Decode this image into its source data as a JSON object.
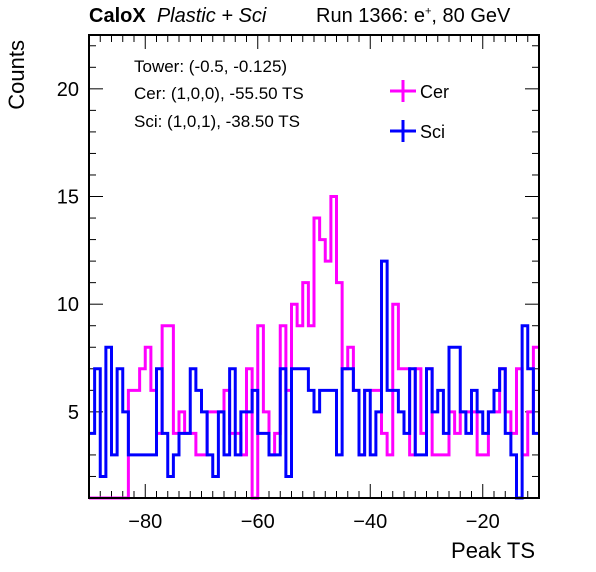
{
  "header": {
    "brand": "CaloX",
    "config": "Plastic + Sci",
    "run": "Run 1366: e",
    "run_sup": "+",
    "run_tail": ", 80 GeV"
  },
  "chart_data": {
    "type": "histogram",
    "xlabel": "Peak TS",
    "ylabel": "Counts",
    "xlim": [
      -90,
      -10
    ],
    "ylim": [
      1,
      22.5
    ],
    "x_ticks": [
      -80,
      -60,
      -40,
      -20
    ],
    "y_ticks": [
      5,
      10,
      15,
      20
    ],
    "bin_width": 1,
    "bin_start": -90,
    "info_lines": [
      "Tower: (-0.5, -0.125)",
      "Cer: (1,0,0), -55.50 TS",
      "Sci: (1,0,1), -38.50 TS"
    ],
    "series": [
      {
        "name": "Cer",
        "color": "#ff00ff",
        "values": [
          1,
          1,
          1,
          1,
          1,
          1,
          1,
          6,
          6,
          7,
          8,
          6,
          4,
          9,
          9,
          4,
          5,
          4,
          4,
          3,
          3,
          5,
          5,
          5,
          6,
          4,
          4,
          3,
          7,
          1,
          9,
          5,
          3,
          4,
          9,
          6,
          10,
          9,
          11,
          9,
          14,
          13,
          12,
          15,
          11,
          7,
          8,
          6,
          3,
          6,
          6,
          6,
          4,
          3,
          10,
          7,
          7,
          3,
          7,
          4,
          7,
          3,
          3,
          3,
          5,
          4,
          5,
          5,
          5,
          3,
          3,
          5,
          5,
          7,
          5,
          4,
          7,
          3,
          5,
          8
        ]
      },
      {
        "name": "Sci",
        "color": "#0000ff",
        "values": [
          4,
          7,
          2,
          8,
          3,
          7,
          5,
          3,
          3,
          3,
          3,
          3,
          7,
          4,
          2,
          3,
          4,
          4,
          7,
          6,
          5,
          3,
          2,
          5,
          3,
          7,
          3,
          5,
          5,
          6,
          4,
          4,
          3,
          3,
          7,
          2,
          7,
          7,
          7,
          6,
          5,
          6,
          6,
          6,
          3,
          7,
          7,
          6,
          3,
          6,
          3,
          5,
          12,
          6,
          6,
          5,
          4,
          7,
          3,
          3,
          7,
          5,
          6,
          4,
          8,
          8,
          5,
          4,
          6,
          5,
          4,
          5,
          6,
          7,
          4,
          3,
          1,
          9,
          7,
          4
        ]
      }
    ]
  }
}
